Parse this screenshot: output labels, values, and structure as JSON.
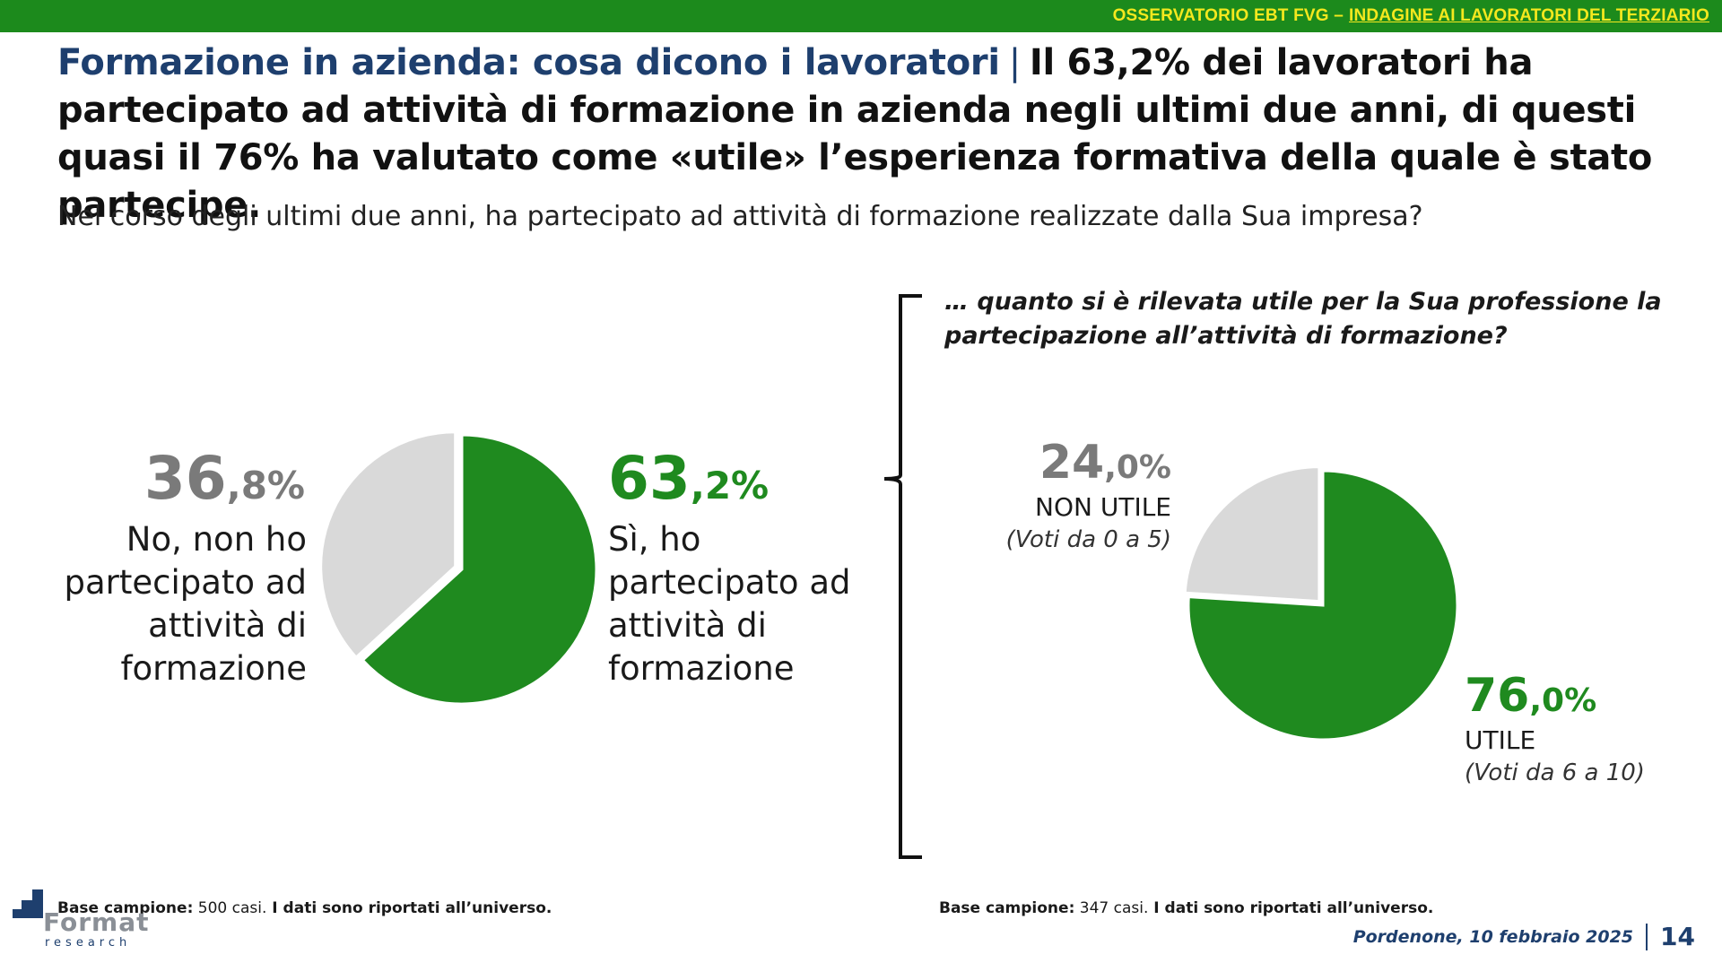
{
  "header": {
    "brand": "OSSERVATORIO EBT FVG –",
    "subtitle": "INDAGINE AI LAVORATORI DEL TERZIARIO"
  },
  "title": {
    "lead": "Formazione in azienda: cosa dicono i lavoratori",
    "separator": "|",
    "rest": "Il 63,2% dei lavoratori ha partecipato ad attività di formazione in azienda negli ultimi due anni, di questi quasi il 76% ha valutato come «utile» l’esperienza formativa della quale è stato partecipe."
  },
  "question": "Nel corso degli ultimi due anni, ha partecipato ad attività di formazione realizzate dalla Sua impresa?",
  "followup_question": "… quanto si è rilevata utile per la Sua professione la partecipazione all’attività di formazione?",
  "charts_labels": {
    "left_no_int": "36",
    "left_no_dec": ",8%",
    "left_no_label": "No, non ho partecipato ad attività di formazione",
    "left_yes_int": "63",
    "left_yes_dec": ",2%",
    "left_yes_label": "Sì, ho partecipato ad attività di formazione",
    "right_no_int": "24",
    "right_no_dec": ",0%",
    "right_no_label": "NON UTILE",
    "right_no_sub": "(Voti da 0 a 5)",
    "right_yes_int": "76",
    "right_yes_dec": ",0%",
    "right_yes_label": "UTILE",
    "right_yes_sub": "(Voti da 6 a 10)"
  },
  "chart_data": [
    {
      "type": "pie",
      "categories": [
        "Sì, ho partecipato ad attività di formazione",
        "No, non ho partecipato ad attività di formazione"
      ],
      "values": [
        63.2,
        36.8
      ],
      "colors": [
        "#1f8a1f",
        "#d9d9d9"
      ],
      "exploded": "No, non ho partecipato ad attività di formazione"
    },
    {
      "type": "pie",
      "categories": [
        "UTILE",
        "NON UTILE"
      ],
      "values": [
        76.0,
        24.0
      ],
      "colors": [
        "#1f8a1f",
        "#d9d9d9"
      ],
      "exploded": "NON UTILE"
    }
  ],
  "footer": {
    "base_left_label": "Base campione:",
    "base_left_value": " 500 casi.",
    "base_left_note": " I dati sono riportati all’universo.",
    "base_right_label": "Base campione:",
    "base_right_value": " 347 casi.",
    "base_right_note": " I dati sono riportati all’universo.",
    "date": "Pordenone, 10 febbraio 2025",
    "page": "14",
    "logo_word": "Format",
    "logo_sub": "research"
  }
}
